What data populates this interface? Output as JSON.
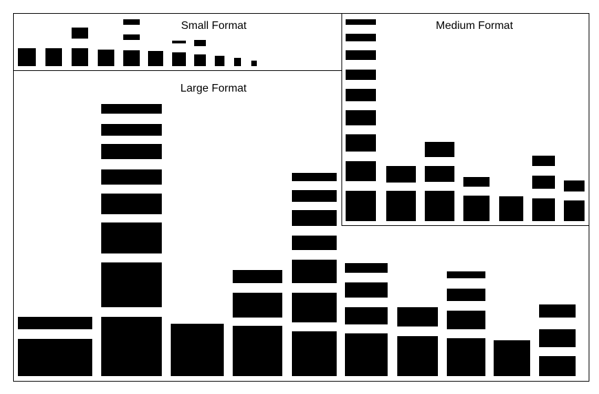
{
  "panels": {
    "small": {
      "title": "Small Format"
    },
    "medium": {
      "title": "Medium Format"
    },
    "large": {
      "title": "Large Format"
    }
  },
  "colors": {
    "block": "#000000",
    "background": "#ffffff"
  }
}
